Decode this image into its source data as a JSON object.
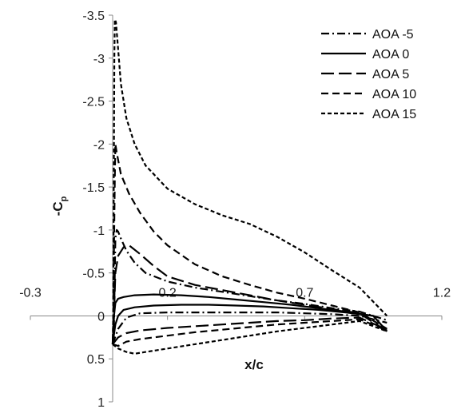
{
  "chart_data": {
    "type": "line",
    "xlabel": "x/c",
    "ylabel": "-C",
    "ylabel_subscript": "p",
    "xlim": [
      -0.3,
      1.2
    ],
    "ylim": [
      -3.5,
      1
    ],
    "y_inverted": true,
    "x_ticks": [
      "-0.3",
      "0.2",
      "0.7",
      "1.2"
    ],
    "y_ticks": [
      "-3.5",
      "-3",
      "-2.5",
      "-2",
      "-1.5",
      "-1",
      "-0.5",
      "0",
      "0.5",
      "1"
    ],
    "grid": false,
    "legend_position": "top-right",
    "series": [
      {
        "name": "AOA -5",
        "dash": "dashdot",
        "upper": [
          [
            0.0,
            0.33
          ],
          [
            0.005,
            0.1
          ],
          [
            0.01,
            -0.9
          ],
          [
            0.015,
            -1.0
          ],
          [
            0.02,
            -0.98
          ],
          [
            0.03,
            -0.9
          ],
          [
            0.05,
            -0.76
          ],
          [
            0.08,
            -0.62
          ],
          [
            0.12,
            -0.5
          ],
          [
            0.2,
            -0.4
          ],
          [
            0.3,
            -0.33
          ],
          [
            0.4,
            -0.28
          ],
          [
            0.5,
            -0.23
          ],
          [
            0.6,
            -0.18
          ],
          [
            0.7,
            -0.14
          ],
          [
            0.8,
            -0.09
          ],
          [
            0.9,
            -0.05
          ],
          [
            1.0,
            0.05
          ]
        ],
        "lower": [
          [
            0.0,
            0.33
          ],
          [
            0.02,
            0.15
          ],
          [
            0.05,
            0.02
          ],
          [
            0.1,
            -0.03
          ],
          [
            0.2,
            -0.04
          ],
          [
            0.3,
            -0.04
          ],
          [
            0.4,
            -0.04
          ],
          [
            0.5,
            -0.04
          ],
          [
            0.6,
            -0.04
          ],
          [
            0.7,
            -0.03
          ],
          [
            0.8,
            -0.02
          ],
          [
            0.9,
            0.0
          ],
          [
            1.0,
            0.08
          ]
        ]
      },
      {
        "name": "AOA 0",
        "dash": "solid",
        "upper": [
          [
            0.0,
            0.33
          ],
          [
            0.01,
            0.1
          ],
          [
            0.02,
            0.0
          ],
          [
            0.04,
            -0.07
          ],
          [
            0.08,
            -0.1
          ],
          [
            0.15,
            -0.12
          ],
          [
            0.25,
            -0.13
          ],
          [
            0.35,
            -0.13
          ],
          [
            0.45,
            -0.12
          ],
          [
            0.55,
            -0.11
          ],
          [
            0.65,
            -0.09
          ],
          [
            0.75,
            -0.07
          ],
          [
            0.85,
            -0.04
          ],
          [
            0.95,
            0.0
          ],
          [
            1.0,
            0.18
          ]
        ],
        "lower": [
          [
            0.0,
            0.33
          ],
          [
            0.005,
            0.0
          ],
          [
            0.01,
            -0.15
          ],
          [
            0.02,
            -0.2
          ],
          [
            0.04,
            -0.22
          ],
          [
            0.08,
            -0.24
          ],
          [
            0.15,
            -0.25
          ],
          [
            0.25,
            -0.24
          ],
          [
            0.35,
            -0.22
          ],
          [
            0.45,
            -0.19
          ],
          [
            0.55,
            -0.16
          ],
          [
            0.65,
            -0.13
          ],
          [
            0.75,
            -0.09
          ],
          [
            0.85,
            -0.05
          ],
          [
            0.95,
            0.0
          ],
          [
            1.0,
            0.18
          ]
        ]
      },
      {
        "name": "AOA 5",
        "dash": "longdash",
        "upper": [
          [
            0.0,
            0.33
          ],
          [
            0.005,
            0.0
          ],
          [
            0.01,
            -0.5
          ],
          [
            0.02,
            -0.7
          ],
          [
            0.04,
            -0.8
          ],
          [
            0.06,
            -0.82
          ],
          [
            0.1,
            -0.72
          ],
          [
            0.15,
            -0.58
          ],
          [
            0.2,
            -0.46
          ],
          [
            0.3,
            -0.36
          ],
          [
            0.4,
            -0.3
          ],
          [
            0.5,
            -0.24
          ],
          [
            0.6,
            -0.18
          ],
          [
            0.7,
            -0.13
          ],
          [
            0.8,
            -0.08
          ],
          [
            0.9,
            -0.03
          ],
          [
            1.0,
            0.18
          ]
        ],
        "lower": [
          [
            0.0,
            0.33
          ],
          [
            0.02,
            0.25
          ],
          [
            0.05,
            0.2
          ],
          [
            0.1,
            0.17
          ],
          [
            0.2,
            0.14
          ],
          [
            0.3,
            0.12
          ],
          [
            0.4,
            0.1
          ],
          [
            0.5,
            0.08
          ],
          [
            0.6,
            0.06
          ],
          [
            0.7,
            0.05
          ],
          [
            0.8,
            0.03
          ],
          [
            0.9,
            0.02
          ],
          [
            1.0,
            0.16
          ]
        ]
      },
      {
        "name": "AOA 10",
        "dash": "dash",
        "upper": [
          [
            0.0,
            0.33
          ],
          [
            0.003,
            0.0
          ],
          [
            0.005,
            -0.8
          ],
          [
            0.008,
            -1.6
          ],
          [
            0.01,
            -2.0
          ],
          [
            0.015,
            -1.9
          ],
          [
            0.03,
            -1.65
          ],
          [
            0.06,
            -1.42
          ],
          [
            0.1,
            -1.2
          ],
          [
            0.15,
            -0.98
          ],
          [
            0.2,
            -0.82
          ],
          [
            0.3,
            -0.6
          ],
          [
            0.4,
            -0.46
          ],
          [
            0.5,
            -0.36
          ],
          [
            0.6,
            -0.27
          ],
          [
            0.7,
            -0.2
          ],
          [
            0.8,
            -0.12
          ],
          [
            0.9,
            -0.04
          ],
          [
            1.0,
            0.15
          ]
        ],
        "lower": [
          [
            0.0,
            0.33
          ],
          [
            0.02,
            0.35
          ],
          [
            0.05,
            0.3
          ],
          [
            0.1,
            0.27
          ],
          [
            0.2,
            0.23
          ],
          [
            0.3,
            0.19
          ],
          [
            0.4,
            0.16
          ],
          [
            0.5,
            0.13
          ],
          [
            0.6,
            0.1
          ],
          [
            0.7,
            0.08
          ],
          [
            0.8,
            0.06
          ],
          [
            0.9,
            0.04
          ],
          [
            1.0,
            0.17
          ]
        ]
      },
      {
        "name": "AOA 15",
        "dash": "shortdash",
        "upper": [
          [
            0.0,
            0.33
          ],
          [
            0.002,
            0.0
          ],
          [
            0.004,
            -1.5
          ],
          [
            0.006,
            -3.0
          ],
          [
            0.008,
            -3.45
          ],
          [
            0.012,
            -3.42
          ],
          [
            0.02,
            -3.1
          ],
          [
            0.03,
            -2.7
          ],
          [
            0.05,
            -2.3
          ],
          [
            0.08,
            -2.0
          ],
          [
            0.12,
            -1.75
          ],
          [
            0.2,
            -1.48
          ],
          [
            0.3,
            -1.3
          ],
          [
            0.4,
            -1.17
          ],
          [
            0.5,
            -1.07
          ],
          [
            0.6,
            -0.92
          ],
          [
            0.7,
            -0.74
          ],
          [
            0.8,
            -0.53
          ],
          [
            0.9,
            -0.33
          ],
          [
            0.97,
            -0.1
          ],
          [
            1.0,
            0.0
          ]
        ],
        "lower": [
          [
            0.0,
            0.33
          ],
          [
            0.02,
            0.38
          ],
          [
            0.05,
            0.42
          ],
          [
            0.08,
            0.44
          ],
          [
            0.12,
            0.42
          ],
          [
            0.2,
            0.38
          ],
          [
            0.3,
            0.33
          ],
          [
            0.4,
            0.28
          ],
          [
            0.5,
            0.23
          ],
          [
            0.6,
            0.18
          ],
          [
            0.7,
            0.14
          ],
          [
            0.8,
            0.1
          ],
          [
            0.9,
            0.06
          ],
          [
            1.0,
            0.18
          ]
        ]
      }
    ]
  },
  "colors": {
    "line": "#000000",
    "axis": "#888888",
    "background": "#ffffff"
  }
}
